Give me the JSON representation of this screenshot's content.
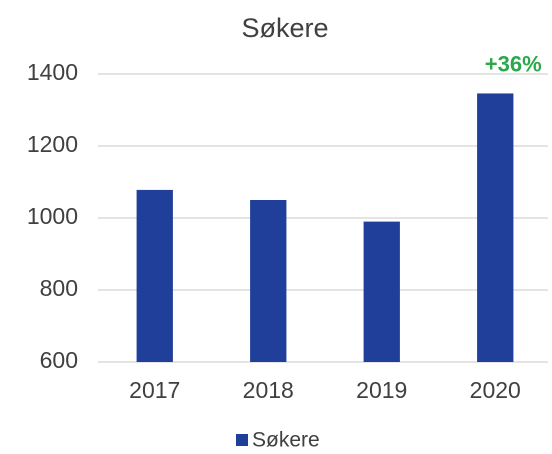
{
  "chart_data": {
    "type": "bar",
    "title": "Søkere",
    "categories": [
      "2017",
      "2018",
      "2019",
      "2020"
    ],
    "series": [
      {
        "name": "Søkere",
        "color": "#203f9a",
        "values": [
          1078,
          1050,
          990,
          1346
        ]
      }
    ],
    "ylim": [
      600,
      1400
    ],
    "yticks": [
      600,
      800,
      1000,
      1200,
      1400
    ],
    "grid": true,
    "legend": "bottom",
    "annotation": "+36%",
    "annotation_color": "#2aa84a"
  }
}
